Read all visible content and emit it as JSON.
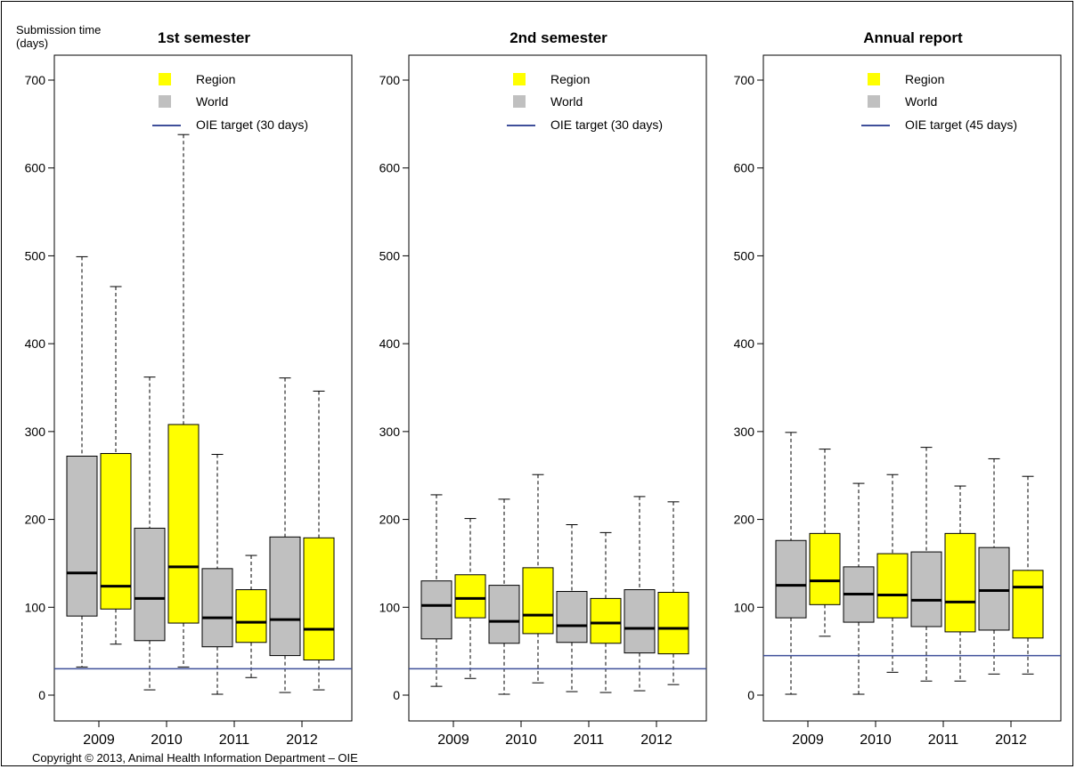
{
  "y_axis_title": [
    "Submission time",
    "(days)"
  ],
  "copyright": "Copyright © 2013, Animal Health Information Department – OIE",
  "legend": {
    "region_label": "Region",
    "world_label": "World",
    "target_label": "OIE target"
  },
  "colors": {
    "region": "#ffff00",
    "world": "#c0c0c0",
    "target": "#3f4f9a",
    "median": "#000000"
  },
  "chart_data": [
    {
      "type": "boxplot",
      "title": "1st semester",
      "target_text": "(30 days)",
      "target_value": 30,
      "ylim": [
        -28,
        730
      ],
      "yticks": [
        0,
        100,
        200,
        300,
        400,
        500,
        600,
        700
      ],
      "categories": [
        "2009",
        "2010",
        "2011",
        "2012"
      ],
      "series": [
        {
          "name": "World",
          "boxes": [
            {
              "min": 32,
              "q1": 90,
              "median": 139,
              "q3": 272,
              "max": 499
            },
            {
              "min": 6,
              "q1": 62,
              "median": 110,
              "q3": 190,
              "max": 362
            },
            {
              "min": 1,
              "q1": 55,
              "median": 88,
              "q3": 144,
              "max": 274
            },
            {
              "min": 3,
              "q1": 45,
              "median": 86,
              "q3": 180,
              "max": 361
            }
          ]
        },
        {
          "name": "Region",
          "boxes": [
            {
              "min": 58,
              "q1": 98,
              "median": 124,
              "q3": 275,
              "max": 465
            },
            {
              "min": 32,
              "q1": 82,
              "median": 146,
              "q3": 308,
              "max": 638
            },
            {
              "min": 20,
              "q1": 60,
              "median": 83,
              "q3": 120,
              "max": 159
            },
            {
              "min": 6,
              "q1": 40,
              "median": 75,
              "q3": 179,
              "max": 346
            }
          ]
        }
      ]
    },
    {
      "type": "boxplot",
      "title": "2nd semester",
      "target_text": "(30 days)",
      "target_value": 30,
      "ylim": [
        -28,
        730
      ],
      "yticks": [
        0,
        100,
        200,
        300,
        400,
        500,
        600,
        700
      ],
      "categories": [
        "2009",
        "2010",
        "2011",
        "2012"
      ],
      "series": [
        {
          "name": "World",
          "boxes": [
            {
              "min": 10,
              "q1": 64,
              "median": 102,
              "q3": 130,
              "max": 228
            },
            {
              "min": 1,
              "q1": 59,
              "median": 84,
              "q3": 125,
              "max": 223
            },
            {
              "min": 4,
              "q1": 60,
              "median": 79,
              "q3": 118,
              "max": 194
            },
            {
              "min": 5,
              "q1": 48,
              "median": 76,
              "q3": 120,
              "max": 226
            }
          ]
        },
        {
          "name": "Region",
          "boxes": [
            {
              "min": 19,
              "q1": 88,
              "median": 110,
              "q3": 137,
              "max": 201
            },
            {
              "min": 14,
              "q1": 70,
              "median": 91,
              "q3": 145,
              "max": 251
            },
            {
              "min": 3,
              "q1": 59,
              "median": 82,
              "q3": 110,
              "max": 185
            },
            {
              "min": 12,
              "q1": 47,
              "median": 76,
              "q3": 117,
              "max": 220
            }
          ]
        }
      ]
    },
    {
      "type": "boxplot",
      "title": "Annual report",
      "target_text": "(45 days)",
      "target_value": 45,
      "ylim": [
        -28,
        730
      ],
      "yticks": [
        0,
        100,
        200,
        300,
        400,
        500,
        600,
        700
      ],
      "categories": [
        "2009",
        "2010",
        "2011",
        "2012"
      ],
      "series": [
        {
          "name": "World",
          "boxes": [
            {
              "min": 1,
              "q1": 88,
              "median": 125,
              "q3": 176,
              "max": 299
            },
            {
              "min": 1,
              "q1": 83,
              "median": 115,
              "q3": 146,
              "max": 241
            },
            {
              "min": 16,
              "q1": 78,
              "median": 108,
              "q3": 163,
              "max": 282
            },
            {
              "min": 24,
              "q1": 74,
              "median": 119,
              "q3": 168,
              "max": 269
            }
          ]
        },
        {
          "name": "Region",
          "boxes": [
            {
              "min": 67,
              "q1": 103,
              "median": 130,
              "q3": 184,
              "max": 280
            },
            {
              "min": 26,
              "q1": 88,
              "median": 114,
              "q3": 161,
              "max": 251
            },
            {
              "min": 16,
              "q1": 72,
              "median": 106,
              "q3": 184,
              "max": 238
            },
            {
              "min": 24,
              "q1": 65,
              "median": 123,
              "q3": 142,
              "max": 249
            }
          ]
        }
      ]
    }
  ]
}
